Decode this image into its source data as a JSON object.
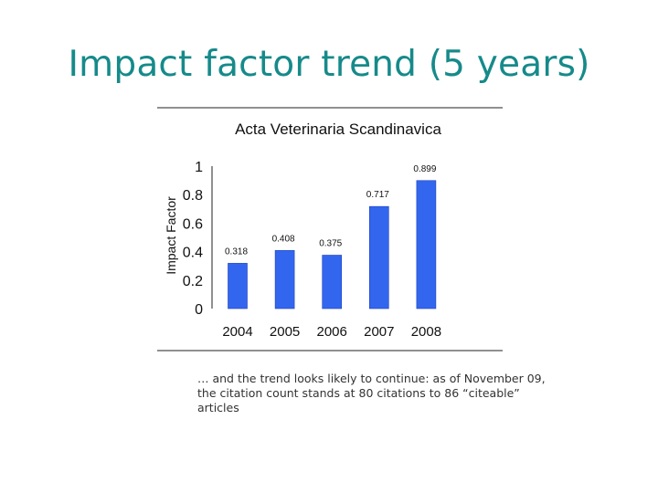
{
  "slide": {
    "title": "Impact factor trend (5 years)",
    "caption": "… and the trend looks likely to continue: as of November 09, the citation count stands at 80 citations to 86 “citeable” articles"
  },
  "colors": {
    "title": "#168a8a",
    "bar": "#3366ee",
    "bar_edge": "#1a3fbf"
  },
  "chart_data": {
    "type": "bar",
    "title": "Acta Veterinaria Scandinavica",
    "xlabel": "",
    "ylabel": "Impact Factor",
    "categories": [
      "2004",
      "2005",
      "2006",
      "2007",
      "2008"
    ],
    "values": [
      0.318,
      0.408,
      0.375,
      0.717,
      0.899
    ],
    "value_labels": [
      "0.318",
      "0.408",
      "0.375",
      "0.717",
      "0.899"
    ],
    "yticks": [
      "0",
      "0.2",
      "0.4",
      "0.6",
      "0.8",
      "1"
    ],
    "ylim": [
      0,
      1
    ],
    "grid": false,
    "legend": "none"
  }
}
